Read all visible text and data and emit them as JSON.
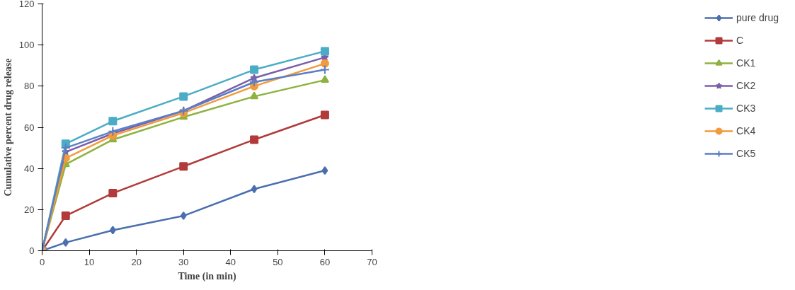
{
  "chart_data": {
    "type": "line",
    "xlabel": "Time (in min)",
    "ylabel": "Cumulative percent drug release",
    "x": [
      0,
      5,
      15,
      30,
      45,
      60
    ],
    "xlim": [
      0,
      70
    ],
    "xticks": [
      0,
      10,
      20,
      30,
      40,
      50,
      60,
      70
    ],
    "ylim": [
      0,
      120
    ],
    "yticks": [
      0,
      20,
      40,
      60,
      80,
      100,
      120
    ],
    "grid": false,
    "legend": "right",
    "series": [
      {
        "name": "pure drug",
        "color": "#4a6fae",
        "marker": "diamond",
        "values": [
          0,
          4,
          10,
          17,
          30,
          39
        ]
      },
      {
        "name": "C",
        "color": "#b23a3a",
        "marker": "square",
        "values": [
          0,
          17,
          28,
          41,
          54,
          66
        ]
      },
      {
        "name": "CK1",
        "color": "#8db23f",
        "marker": "triangle",
        "values": [
          0,
          42,
          54,
          65,
          75,
          83
        ]
      },
      {
        "name": "CK2",
        "color": "#7c5ea8",
        "marker": "star",
        "values": [
          0,
          48,
          57,
          68,
          84,
          94
        ]
      },
      {
        "name": "CK3",
        "color": "#4bacc6",
        "marker": "square",
        "values": [
          0,
          52,
          63,
          75,
          88,
          97
        ]
      },
      {
        "name": "CK4",
        "color": "#f39a3c",
        "marker": "circle",
        "values": [
          0,
          45,
          56,
          67,
          80,
          91
        ]
      },
      {
        "name": "CK5",
        "color": "#5b7fc4",
        "marker": "cross",
        "values": [
          0,
          50,
          58,
          68,
          82,
          88
        ]
      }
    ]
  }
}
